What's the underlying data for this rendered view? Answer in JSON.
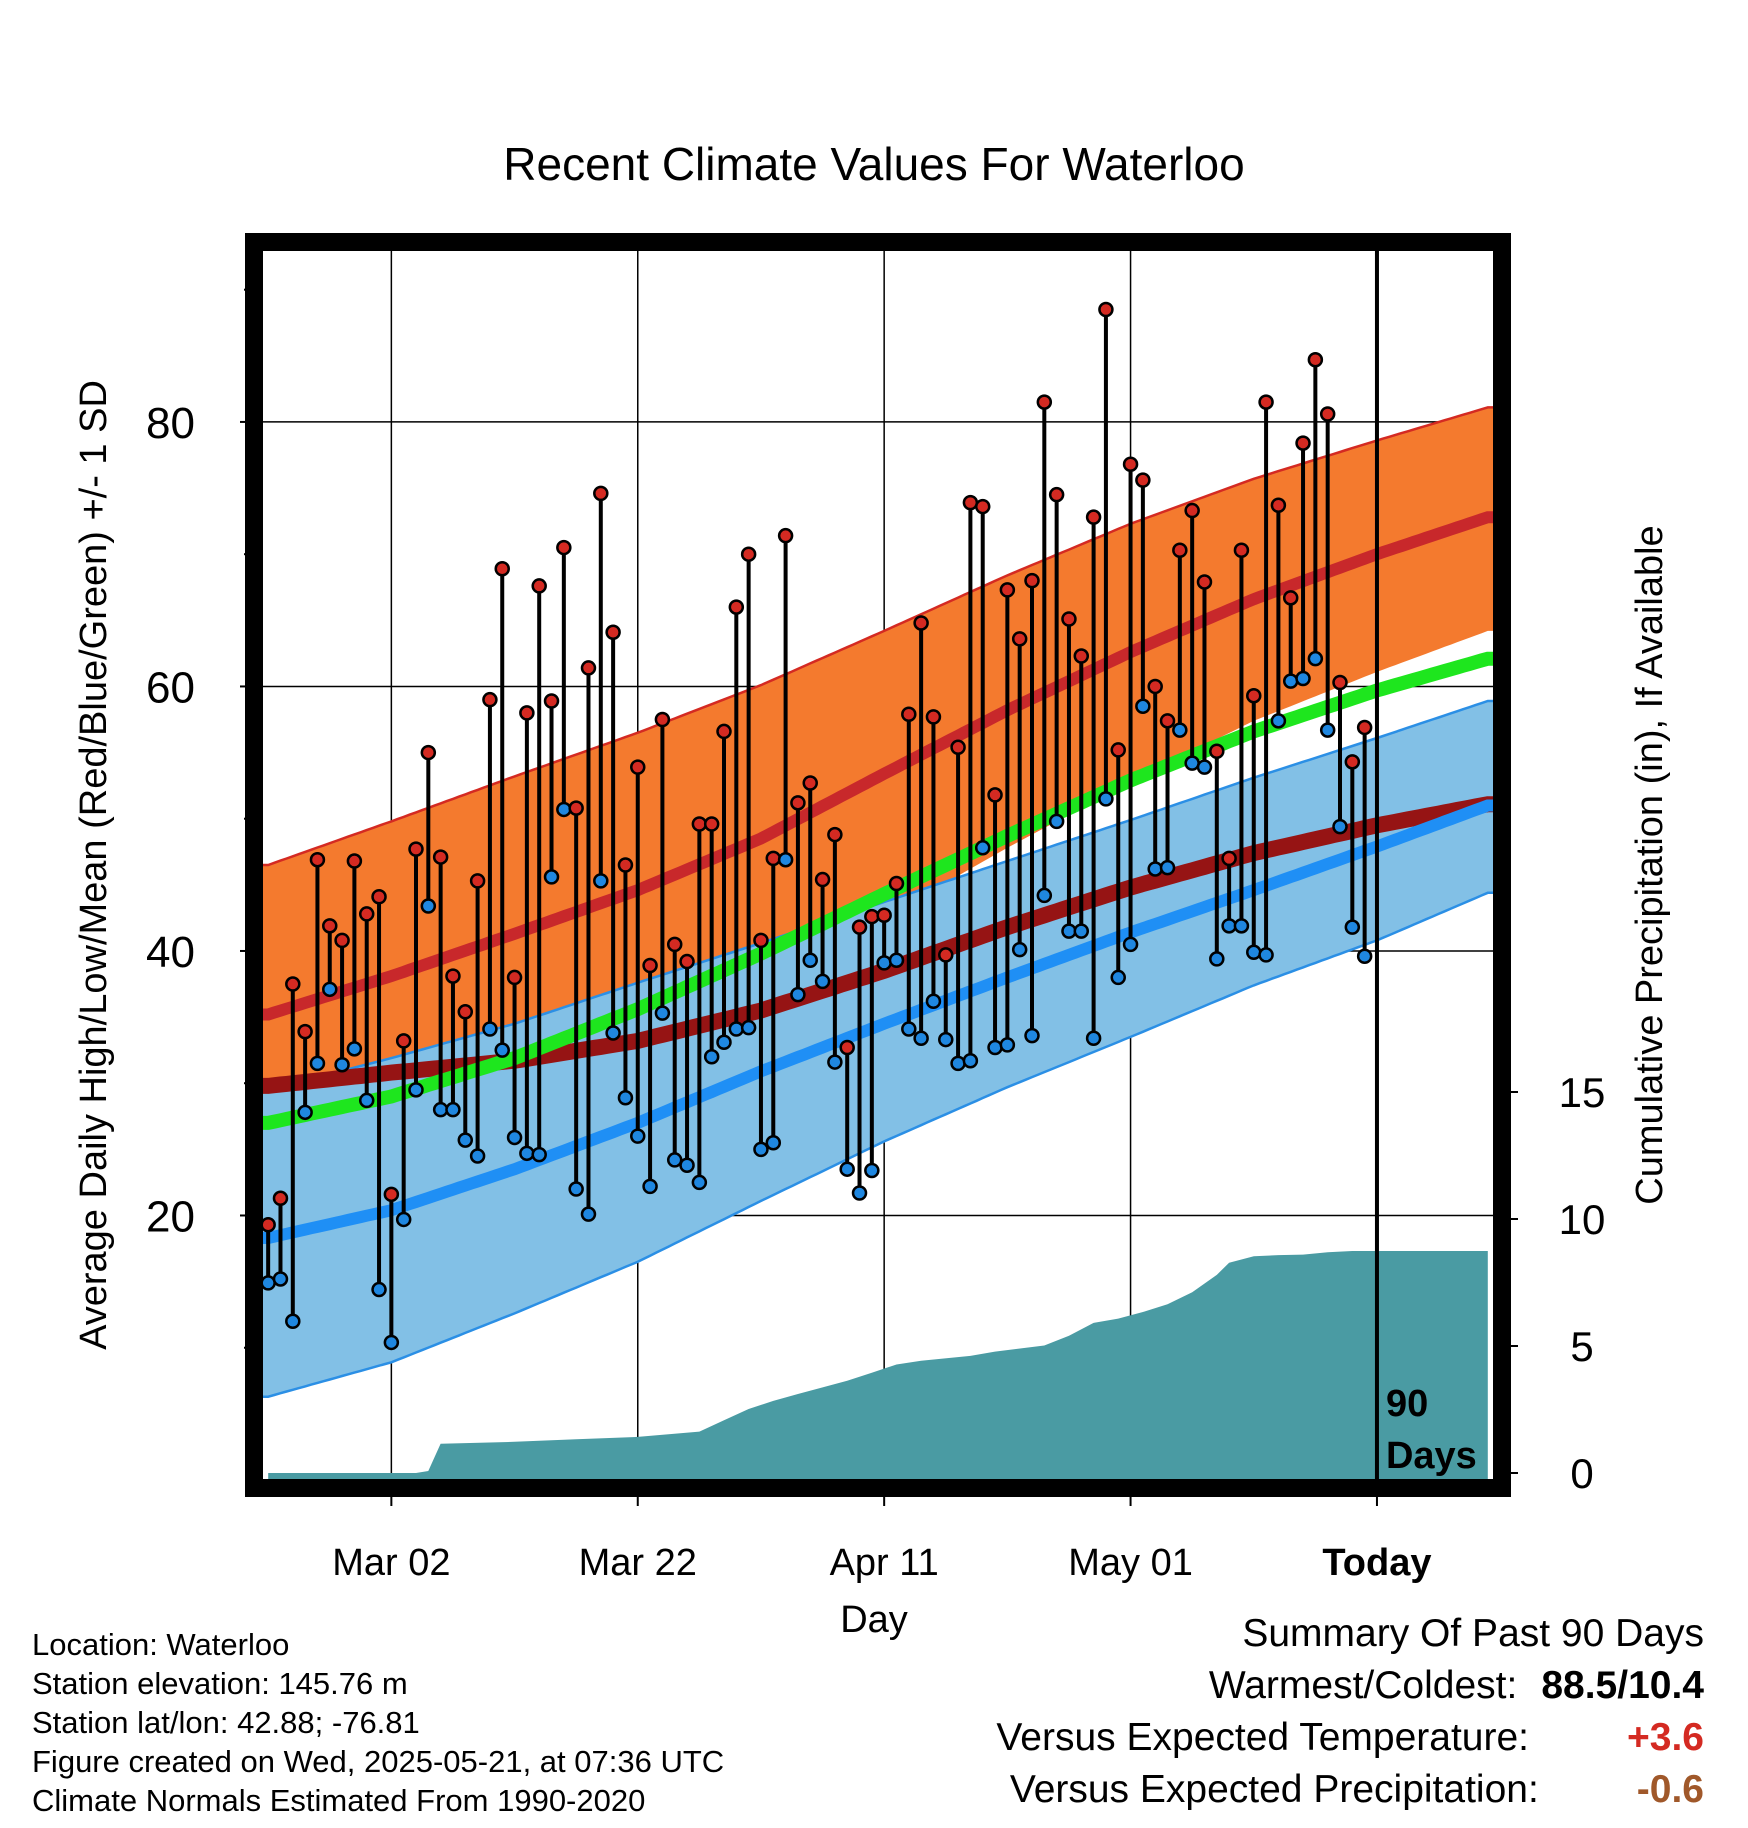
{
  "colors": {
    "high_band": "#f47a2e",
    "high_band_edge": "#d42a22",
    "high_mean": "#c8282b",
    "low_band": "#82c0e6",
    "low_band_edge": "#2b8fe5",
    "low_mean": "#1f8ff5",
    "mean_band": "#1ee61e",
    "mean_band_dark": "#961414",
    "precip": "#4a9ba3",
    "high_dot": "#d42a22",
    "low_dot": "#1f87e0",
    "positive_temp": "#d42a22",
    "negative_precip": "#a0582a"
  },
  "chart_data": {
    "type": "line",
    "title": "Recent Climate Values For Waterloo",
    "xlabel": "Day",
    "ylabel": "Average Daily High/Low/Mean (Red/Blue/Green) +/- 1 SD",
    "y2label": "Cumulative Precipitation (in), If Available",
    "x_ticks": [
      {
        "day": 10,
        "label": "Mar 02"
      },
      {
        "day": 30,
        "label": "Mar 22"
      },
      {
        "day": 50,
        "label": "Apr 11"
      },
      {
        "day": 70,
        "label": "May 01"
      },
      {
        "day": 90,
        "label": "Today"
      }
    ],
    "xlim": [
      -0.5,
      99.5
    ],
    "ylim": [
      0,
      93
    ],
    "y_ticks": [
      20,
      40,
      60,
      80
    ],
    "y_minor_ticks": [
      10,
      30,
      50,
      70,
      90
    ],
    "y2lim": [
      0,
      20
    ],
    "y2_ticks": [
      0,
      5,
      10,
      15
    ],
    "today_day": 90,
    "today_label": [
      "90",
      "Days"
    ],
    "grid": true,
    "normals": {
      "high_mean": {
        "days": [
          0,
          10,
          20,
          30,
          40,
          50,
          60,
          70,
          80,
          90,
          99
        ],
        "values": [
          35.2,
          38.1,
          41.3,
          44.6,
          48.5,
          53.4,
          58.2,
          62.6,
          66.6,
          70.0,
          72.8
        ]
      },
      "high_sd_upper": {
        "days": [
          0,
          10,
          20,
          30,
          40,
          50,
          60,
          70,
          80,
          90,
          99
        ],
        "values": [
          46.5,
          49.8,
          53.2,
          56.5,
          60.1,
          64.2,
          68.4,
          72.3,
          75.7,
          78.6,
          81.1
        ]
      },
      "high_sd_lower": {
        "days": [
          0,
          10,
          20,
          30,
          40,
          50,
          60,
          70,
          80,
          90,
          99
        ],
        "values": [
          25.2,
          27.0,
          29.4,
          32.8,
          36.9,
          42.5,
          47.8,
          52.8,
          57.4,
          61.1,
          64.2
        ]
      },
      "mean": {
        "days": [
          0,
          10,
          20,
          30,
          40,
          50,
          60,
          70,
          80,
          90,
          99
        ],
        "values": [
          27.0,
          29.0,
          31.9,
          35.6,
          39.8,
          44.3,
          48.7,
          52.9,
          56.6,
          59.7,
          62.1
        ]
      },
      "mean_dark": {
        "days": [
          0,
          10,
          20,
          30,
          40,
          50,
          60,
          70,
          80,
          90,
          99
        ],
        "values": [
          29.8,
          30.8,
          31.7,
          33.2,
          35.5,
          38.5,
          41.8,
          44.8,
          47.4,
          49.5,
          51.1
        ]
      },
      "low_mean": {
        "days": [
          0,
          10,
          20,
          30,
          40,
          50,
          60,
          70,
          80,
          90,
          99
        ],
        "values": [
          18.3,
          20.4,
          23.5,
          27.0,
          30.9,
          34.5,
          38.0,
          41.4,
          44.6,
          47.9,
          51.0
        ]
      },
      "low_sd_upper": {
        "days": [
          0,
          10,
          20,
          30,
          40,
          50,
          60,
          70,
          80,
          90,
          99
        ],
        "values": [
          29.5,
          31.9,
          34.5,
          37.6,
          40.6,
          43.7,
          46.8,
          49.9,
          53.1,
          56.1,
          58.9
        ]
      },
      "low_sd_lower": {
        "days": [
          0,
          10,
          20,
          30,
          40,
          50,
          60,
          70,
          80,
          90,
          99
        ],
        "values": [
          6.3,
          8.9,
          12.6,
          16.5,
          21.1,
          25.6,
          29.7,
          33.5,
          37.4,
          40.8,
          44.4
        ]
      }
    },
    "series": [
      {
        "days": [
          0,
          1,
          2,
          3,
          4,
          5,
          6,
          7,
          8,
          9,
          10,
          11,
          12,
          13,
          14,
          15,
          16,
          17,
          18,
          19,
          20,
          21,
          22,
          23,
          24,
          25,
          26,
          27,
          28,
          29,
          30,
          31,
          32,
          33,
          34,
          35,
          36,
          37,
          38,
          39,
          40,
          41,
          42,
          43,
          44,
          45,
          46,
          47,
          48,
          49,
          50,
          51,
          52,
          53,
          54,
          55,
          56,
          57,
          58,
          59,
          60,
          61,
          62,
          63,
          64,
          65,
          66,
          67,
          68,
          69,
          70,
          71,
          72,
          73,
          74,
          75,
          76,
          77,
          78,
          79,
          80,
          81,
          82,
          83,
          84,
          85,
          86,
          87,
          88,
          89
        ],
        "high": [
          19.3,
          21.3,
          37.5,
          33.9,
          46.9,
          41.9,
          40.8,
          46.8,
          42.8,
          44.1,
          21.6,
          33.2,
          47.7,
          55.0,
          47.1,
          38.1,
          35.4,
          45.3,
          59.0,
          68.9,
          38.0,
          58.0,
          67.6,
          58.9,
          70.5,
          50.8,
          61.4,
          74.6,
          64.1,
          46.5,
          53.9,
          38.9,
          57.5,
          40.5,
          39.2,
          49.6,
          49.6,
          56.6,
          66.0,
          70.0,
          40.8,
          47.0,
          71.4,
          51.2,
          52.7,
          45.4,
          48.8,
          32.7,
          41.8,
          42.6,
          42.7,
          45.1,
          57.9,
          64.8,
          57.7,
          39.7,
          55.4,
          73.9,
          73.6,
          51.8,
          67.3,
          63.6,
          68.0,
          81.5,
          74.5,
          65.1,
          62.3,
          72.8,
          88.5,
          55.2,
          76.8,
          75.6,
          60.0,
          57.4,
          70.3,
          73.3,
          67.9,
          55.1,
          47.0,
          70.3,
          59.3,
          81.5,
          73.7,
          66.7,
          78.4,
          84.7,
          80.6,
          60.3,
          54.3,
          56.9
        ],
        "low": [
          14.9,
          15.2,
          12.0,
          27.8,
          31.5,
          37.1,
          31.4,
          32.6,
          28.7,
          14.4,
          10.4,
          19.7,
          29.5,
          43.4,
          28.0,
          28.0,
          25.7,
          24.5,
          34.1,
          32.5,
          25.9,
          24.7,
          24.6,
          45.6,
          50.7,
          22.0,
          20.1,
          45.3,
          33.8,
          28.9,
          26.0,
          22.2,
          35.3,
          24.2,
          23.8,
          22.5,
          32.0,
          33.1,
          34.1,
          34.2,
          25.0,
          25.5,
          46.9,
          36.7,
          39.3,
          37.7,
          31.6,
          23.5,
          21.7,
          23.4,
          39.1,
          39.3,
          34.1,
          33.4,
          36.2,
          33.3,
          31.5,
          31.7,
          47.8,
          32.7,
          32.9,
          40.1,
          33.6,
          44.2,
          49.8,
          41.5,
          41.5,
          33.4,
          51.5,
          38.0,
          40.5,
          58.5,
          46.2,
          46.3,
          56.7,
          54.2,
          53.9,
          39.4,
          41.9,
          41.9,
          39.9,
          39.7,
          57.4,
          60.4,
          60.6,
          62.1,
          56.7,
          49.4,
          41.8,
          39.6
        ]
      }
    ],
    "precip_cumulative": {
      "days": [
        0,
        6,
        12,
        13,
        14,
        20,
        25,
        30,
        35,
        37,
        39,
        41,
        43,
        45,
        47,
        49,
        51,
        53,
        57,
        59,
        63,
        65,
        67,
        69,
        71,
        73,
        75,
        77,
        78,
        80,
        82,
        84,
        86,
        88,
        90,
        99
      ],
      "values": [
        0,
        0,
        0,
        0.08,
        1.15,
        1.23,
        1.33,
        1.42,
        1.63,
        2.08,
        2.52,
        2.84,
        3.11,
        3.37,
        3.63,
        3.95,
        4.27,
        4.42,
        4.61,
        4.78,
        5.02,
        5.4,
        5.91,
        6.08,
        6.34,
        6.64,
        7.12,
        7.8,
        8.28,
        8.53,
        8.58,
        8.6,
        8.69,
        8.74,
        8.74,
        8.74
      ]
    }
  },
  "station": {
    "location": "Location: Waterloo",
    "elevation": "Station elevation: 145.76 m",
    "latlon": "Station lat/lon: 42.88; -76.81",
    "created": "Figure created on Wed, 2025-05-21, at 07:36 UTC",
    "normals": "Climate Normals Estimated From 1990-2020"
  },
  "summary": {
    "title": "Summary Of Past 90 Days",
    "warm_cold_label": "Warmest/Coldest:",
    "warm_cold_value": "88.5/10.4",
    "temp_label": "Versus Expected Temperature:",
    "temp_value": "+3.6",
    "precip_label": "Versus Expected Precipitation:",
    "precip_value": "-0.6"
  }
}
